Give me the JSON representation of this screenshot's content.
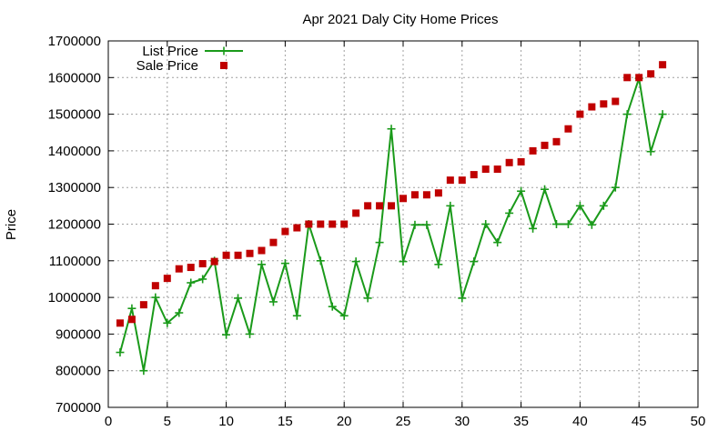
{
  "chart_data": {
    "type": "line",
    "title": "Apr 2021 Daly City Home Prices",
    "xlabel": "",
    "ylabel": "Price",
    "xlim": [
      0,
      50
    ],
    "ylim": [
      700000,
      1700000
    ],
    "x_ticks": [
      0,
      5,
      10,
      15,
      20,
      25,
      30,
      35,
      40,
      45,
      50
    ],
    "y_ticks": [
      700000,
      800000,
      900000,
      1000000,
      1100000,
      1200000,
      1300000,
      1400000,
      1500000,
      1600000,
      1700000
    ],
    "grid": true,
    "legend_position": "top-left",
    "series": [
      {
        "name": "List Price",
        "style": "line-with-plus-markers",
        "color": "#1a9a1a",
        "points": [
          [
            1,
            850000
          ],
          [
            2,
            970000
          ],
          [
            3,
            800000
          ],
          [
            4,
            1000000
          ],
          [
            5,
            930000
          ],
          [
            6,
            958000
          ],
          [
            7,
            1040000
          ],
          [
            8,
            1050000
          ],
          [
            9,
            1100000
          ],
          [
            10,
            898000
          ],
          [
            11,
            998000
          ],
          [
            12,
            900000
          ],
          [
            13,
            1090000
          ],
          [
            14,
            988000
          ],
          [
            15,
            1093000
          ],
          [
            16,
            950000
          ],
          [
            17,
            1200000
          ],
          [
            18,
            1100000
          ],
          [
            19,
            975000
          ],
          [
            20,
            950000
          ],
          [
            21,
            1098000
          ],
          [
            22,
            998000
          ],
          [
            23,
            1150000
          ],
          [
            24,
            1460000
          ],
          [
            25,
            1098000
          ],
          [
            26,
            1198000
          ],
          [
            27,
            1198000
          ],
          [
            28,
            1090000
          ],
          [
            29,
            1250000
          ],
          [
            30,
            998000
          ],
          [
            31,
            1098000
          ],
          [
            32,
            1200000
          ],
          [
            33,
            1150000
          ],
          [
            34,
            1230000
          ],
          [
            35,
            1290000
          ],
          [
            36,
            1188000
          ],
          [
            37,
            1295000
          ],
          [
            38,
            1200000
          ],
          [
            39,
            1200000
          ],
          [
            40,
            1250000
          ],
          [
            41,
            1198000
          ],
          [
            42,
            1250000
          ],
          [
            43,
            1300000
          ],
          [
            44,
            1500000
          ],
          [
            45,
            1598000
          ],
          [
            46,
            1398000
          ],
          [
            47,
            1500000
          ]
        ]
      },
      {
        "name": "Sale Price",
        "style": "square-markers",
        "color": "#c00000",
        "points": [
          [
            1,
            930000
          ],
          [
            2,
            940000
          ],
          [
            3,
            980000
          ],
          [
            4,
            1032000
          ],
          [
            5,
            1052000
          ],
          [
            6,
            1078000
          ],
          [
            7,
            1082000
          ],
          [
            8,
            1092000
          ],
          [
            9,
            1098000
          ],
          [
            10,
            1115000
          ],
          [
            11,
            1115000
          ],
          [
            12,
            1120000
          ],
          [
            13,
            1128000
          ],
          [
            14,
            1150000
          ],
          [
            15,
            1180000
          ],
          [
            16,
            1190000
          ],
          [
            17,
            1200000
          ],
          [
            18,
            1200000
          ],
          [
            19,
            1200000
          ],
          [
            20,
            1200000
          ],
          [
            21,
            1230000
          ],
          [
            22,
            1250000
          ],
          [
            23,
            1250000
          ],
          [
            24,
            1250000
          ],
          [
            25,
            1270000
          ],
          [
            26,
            1280000
          ],
          [
            27,
            1280000
          ],
          [
            28,
            1285000
          ],
          [
            29,
            1320000
          ],
          [
            30,
            1320000
          ],
          [
            31,
            1335000
          ],
          [
            32,
            1350000
          ],
          [
            33,
            1350000
          ],
          [
            34,
            1368000
          ],
          [
            35,
            1370000
          ],
          [
            36,
            1400000
          ],
          [
            37,
            1415000
          ],
          [
            38,
            1425000
          ],
          [
            39,
            1460000
          ],
          [
            40,
            1500000
          ],
          [
            41,
            1520000
          ],
          [
            42,
            1528000
          ],
          [
            43,
            1535000
          ],
          [
            44,
            1600000
          ],
          [
            45,
            1600000
          ],
          [
            46,
            1610000
          ],
          [
            47,
            1635000
          ]
        ]
      }
    ]
  }
}
